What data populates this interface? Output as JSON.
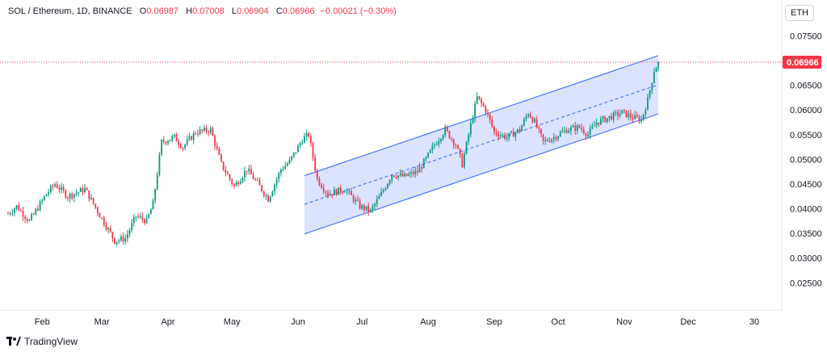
{
  "legend": {
    "symbol": "SOL / Ethereum, 1D, BINANCE",
    "o_label": "O",
    "o": "0.06987",
    "h_label": "H",
    "h": "0.07008",
    "l_label": "L",
    "l": "0.06904",
    "c_label": "C",
    "c": "0.06966",
    "change": "−0.00021 (−0.30%)"
  },
  "currency_button": "ETH",
  "brand": {
    "name": "TradingView",
    "logo_icon": "tradingview-logo-icon"
  },
  "colors": {
    "up": "#089981",
    "down": "#f23645",
    "channel_fill": "#d6deff",
    "channel_line": "#2962ff",
    "price_line": "#f23645",
    "axis_text": "#131722"
  },
  "chart_data": {
    "type": "candlestick",
    "last_price_label": "0.06966",
    "x_ticks": [
      "Feb",
      "Mar",
      "Apr",
      "May",
      "Jun",
      "Jul",
      "Aug",
      "Sep",
      "Oct",
      "Nov",
      "Dec",
      "30"
    ],
    "y_ticks": [
      "0.07500",
      "0.07000",
      "0.06500",
      "0.06000",
      "0.05500",
      "0.05000",
      "0.04500",
      "0.04000",
      "0.03500",
      "0.03000",
      "0.02500"
    ],
    "ylim": [
      0.0195,
      0.078
    ],
    "grid": false,
    "channel": {
      "start_day": 139,
      "end_day": 305,
      "upper": [
        0.0467,
        0.071
      ],
      "middle": [
        0.0409,
        0.0651
      ],
      "lower": [
        0.0349,
        0.0592
      ]
    },
    "path": [
      [
        0,
        0.039
      ],
      [
        4,
        0.0405
      ],
      [
        10,
        0.0375
      ],
      [
        18,
        0.043
      ],
      [
        22,
        0.045
      ],
      [
        28,
        0.0425
      ],
      [
        36,
        0.044
      ],
      [
        42,
        0.0395
      ],
      [
        50,
        0.0335
      ],
      [
        55,
        0.034
      ],
      [
        60,
        0.0385
      ],
      [
        65,
        0.0375
      ],
      [
        68,
        0.041
      ],
      [
        72,
        0.0535
      ],
      [
        78,
        0.0545
      ],
      [
        82,
        0.0525
      ],
      [
        88,
        0.0555
      ],
      [
        95,
        0.056
      ],
      [
        100,
        0.049
      ],
      [
        106,
        0.0445
      ],
      [
        112,
        0.048
      ],
      [
        118,
        0.0445
      ],
      [
        122,
        0.042
      ],
      [
        128,
        0.048
      ],
      [
        132,
        0.0495
      ],
      [
        138,
        0.054
      ],
      [
        141,
        0.055
      ],
      [
        145,
        0.046
      ],
      [
        150,
        0.043
      ],
      [
        158,
        0.044
      ],
      [
        165,
        0.0405
      ],
      [
        170,
        0.0395
      ],
      [
        175,
        0.043
      ],
      [
        180,
        0.047
      ],
      [
        186,
        0.0465
      ],
      [
        192,
        0.0475
      ],
      [
        196,
        0.05
      ],
      [
        200,
        0.053
      ],
      [
        205,
        0.056
      ],
      [
        210,
        0.053
      ],
      [
        213,
        0.049
      ],
      [
        217,
        0.057
      ],
      [
        220,
        0.0625
      ],
      [
        224,
        0.06
      ],
      [
        228,
        0.0555
      ],
      [
        234,
        0.0545
      ],
      [
        240,
        0.056
      ],
      [
        244,
        0.0595
      ],
      [
        247,
        0.0575
      ],
      [
        251,
        0.0535
      ],
      [
        256,
        0.0545
      ],
      [
        262,
        0.056
      ],
      [
        268,
        0.0565
      ],
      [
        272,
        0.055
      ],
      [
        276,
        0.0575
      ],
      [
        282,
        0.0585
      ],
      [
        288,
        0.0595
      ],
      [
        293,
        0.0585
      ],
      [
        297,
        0.058
      ],
      [
        300,
        0.062
      ],
      [
        303,
        0.068
      ],
      [
        305,
        0.0697
      ]
    ]
  }
}
